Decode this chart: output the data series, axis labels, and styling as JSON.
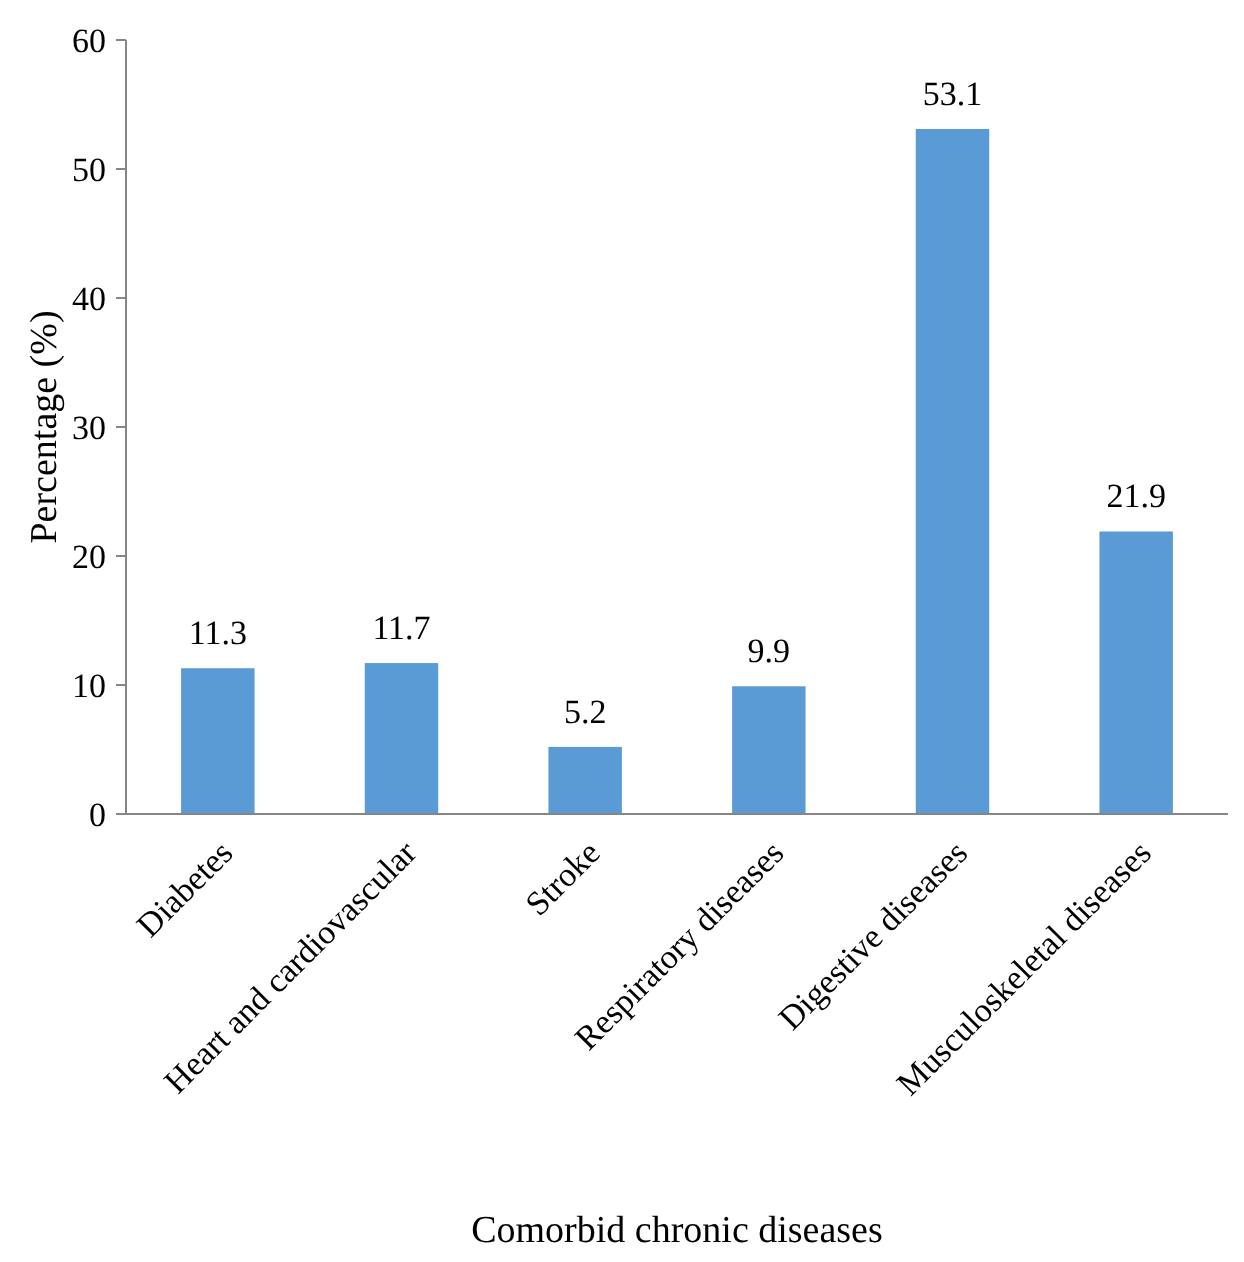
{
  "chart_data": {
    "type": "bar",
    "xlabel": "Comorbid chronic diseases",
    "ylabel": "Percentage (%)",
    "categories": [
      "Diabetes",
      "Heart and cardiovascular",
      "Stroke",
      "Respiratory diseases",
      "Digestive diseases",
      "Musculoskeletal diseases"
    ],
    "values": [
      11.3,
      11.7,
      5.2,
      9.9,
      53.1,
      21.9
    ],
    "color": "#5b9bd5",
    "ylim": [
      0,
      60
    ],
    "yticks": [
      0,
      10,
      20,
      30,
      40,
      50,
      60
    ],
    "grid": false,
    "data_labels": true
  }
}
